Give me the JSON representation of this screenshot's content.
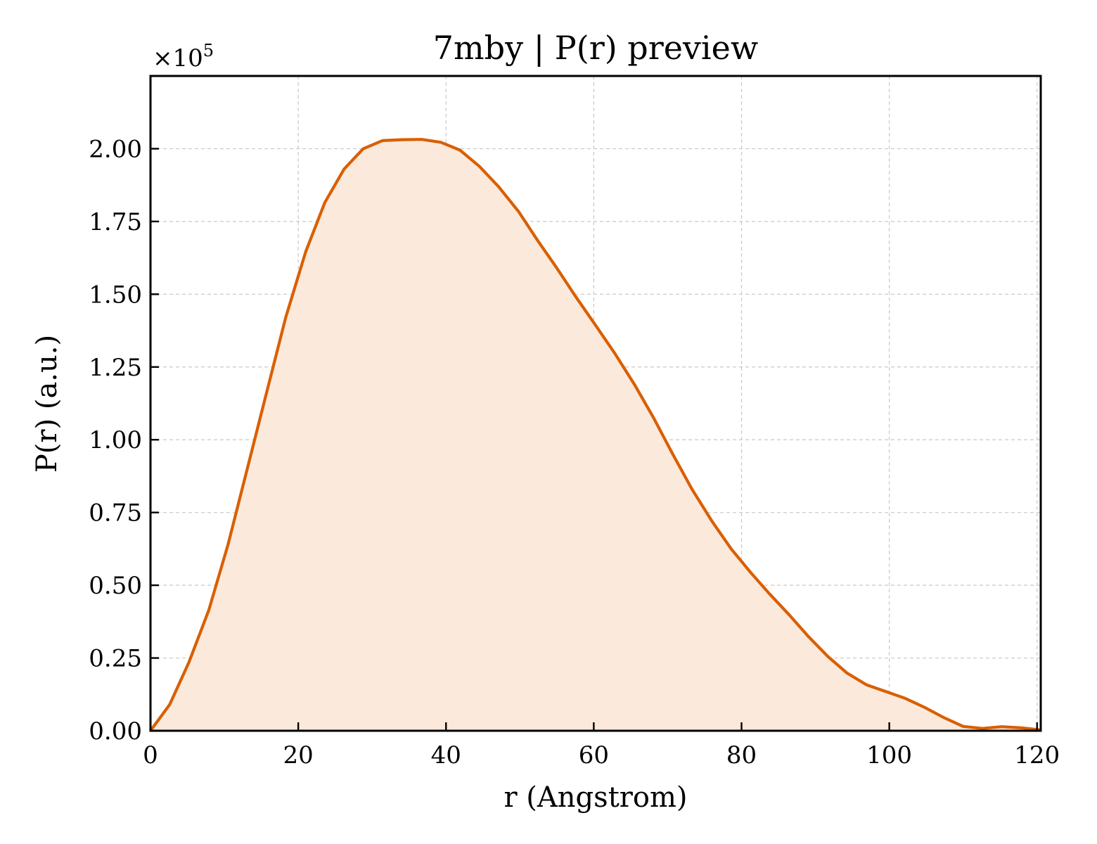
{
  "chart_data": {
    "type": "area",
    "title": "7mby | P(r) preview",
    "xlabel": "r (Angstrom)",
    "ylabel": "P(r) (a.u.)",
    "y_multiplier": {
      "base": "×10",
      "exponent": "5"
    },
    "xlim": [
      0,
      120.5
    ],
    "ylim": [
      0,
      2.25
    ],
    "x_ticks": [
      0,
      20,
      40,
      60,
      80,
      100,
      120
    ],
    "x_tick_labels": [
      "0",
      "20",
      "40",
      "60",
      "80",
      "100",
      "120"
    ],
    "y_ticks": [
      0,
      0.25,
      0.5,
      0.75,
      1.0,
      1.25,
      1.5,
      1.75,
      2.0
    ],
    "y_tick_labels": [
      "0.00",
      "0.25",
      "0.50",
      "0.75",
      "1.00",
      "1.25",
      "1.50",
      "1.75",
      "2.00"
    ],
    "grid": true,
    "line_color": "#d95f02",
    "fill_color": "#fbe9dc",
    "series": [
      {
        "x": [
          0,
          2.6,
          5.2,
          7.9,
          10.5,
          13.1,
          15.7,
          18.3,
          21.0,
          23.6,
          26.2,
          28.8,
          31.4,
          34.0,
          36.7,
          39.3,
          41.9,
          44.5,
          47.1,
          49.8,
          52.4,
          55.0,
          57.6,
          60.2,
          62.9,
          65.5,
          68.1,
          70.7,
          73.3,
          76.0,
          78.6,
          81.2,
          83.8,
          86.4,
          89.0,
          91.7,
          94.3,
          96.9,
          99.5,
          102.1,
          104.8,
          107.4,
          110.0,
          112.6,
          115.2,
          117.9,
          120.5
        ],
        "values": [
          0,
          0.09,
          0.235,
          0.415,
          0.64,
          0.9,
          1.16,
          1.42,
          1.645,
          1.815,
          1.93,
          2.0,
          2.028,
          2.031,
          2.032,
          2.022,
          1.995,
          1.94,
          1.87,
          1.785,
          1.685,
          1.59,
          1.49,
          1.395,
          1.295,
          1.19,
          1.075,
          0.95,
          0.83,
          0.72,
          0.625,
          0.545,
          0.47,
          0.4,
          0.325,
          0.255,
          0.198,
          0.158,
          0.135,
          0.112,
          0.08,
          0.045,
          0.015,
          0.008,
          0.014,
          0.01,
          0.003
        ]
      }
    ]
  }
}
